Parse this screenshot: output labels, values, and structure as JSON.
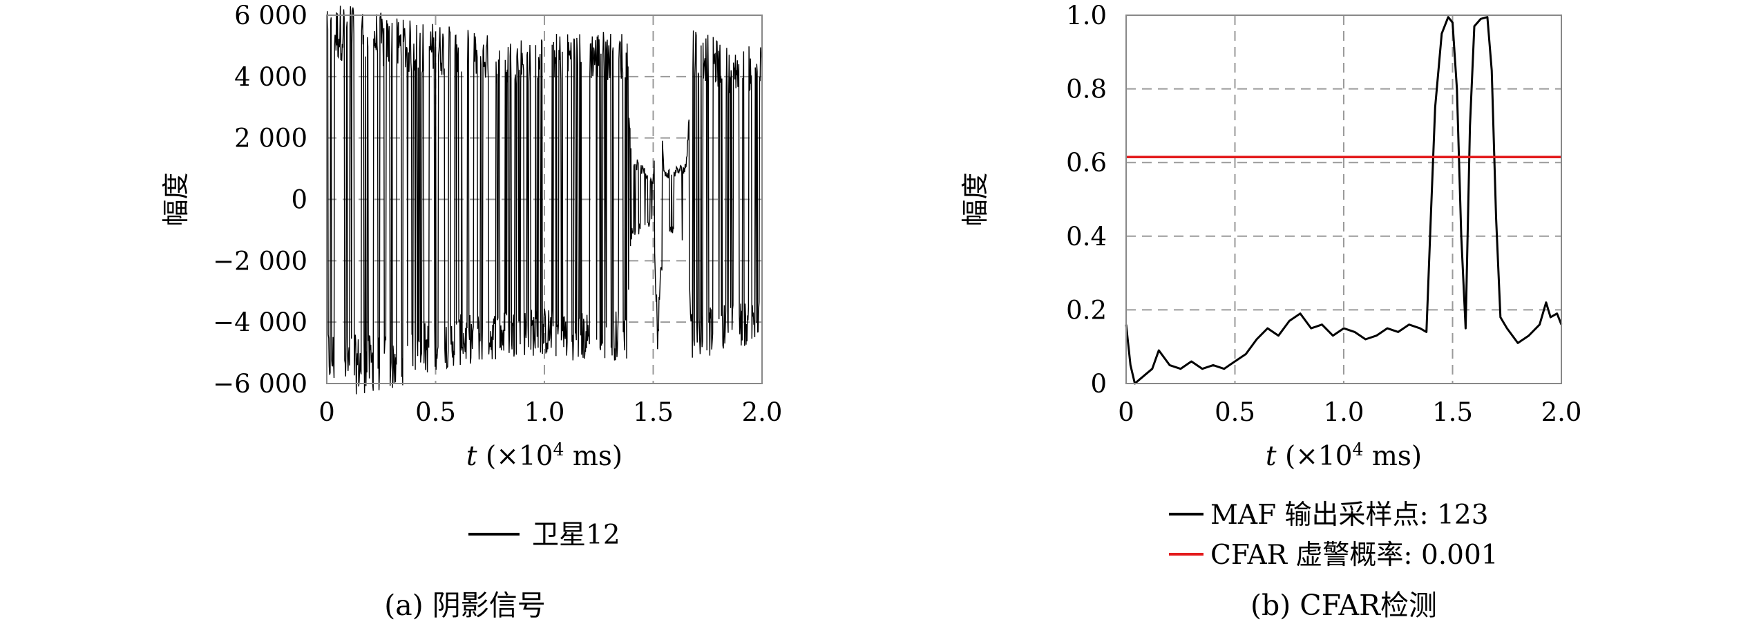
{
  "chart_data": [
    {
      "type": "line",
      "panel_label": "(a)",
      "caption": "(a) 阴影信号",
      "xlabel": "t (×10⁴ ms)",
      "xlabel_var": "t",
      "xlabel_unit": "(×10",
      "xlabel_exp": "4",
      "xlabel_tail": " ms)",
      "ylabel": "幅度",
      "xlim": [
        0,
        2.0
      ],
      "ylim": [
        -6000,
        6000
      ],
      "xticks": [
        0,
        0.5,
        1.0,
        1.5,
        2.0
      ],
      "xtick_labels": [
        "0",
        "0.5",
        "1.0",
        "1.5",
        "2.0"
      ],
      "yticks": [
        -6000,
        -4000,
        -2000,
        0,
        2000,
        4000,
        6000
      ],
      "ytick_labels": [
        "−6 000",
        "−4 000",
        "−2 000",
        "0",
        "2 000",
        "4 000",
        "6 000"
      ],
      "grid": true,
      "legend_position": "bottom",
      "series": [
        {
          "name": "卫星12",
          "color": "#000000",
          "envelope": [
            {
              "x": 0.0,
              "top": 5200,
              "bottom": -5100
            },
            {
              "x": 0.1,
              "top": 5600,
              "bottom": -5400
            },
            {
              "x": 0.3,
              "top": 5000,
              "bottom": -5300
            },
            {
              "x": 0.5,
              "top": 4900,
              "bottom": -4700
            },
            {
              "x": 0.8,
              "top": 4500,
              "bottom": -4400
            },
            {
              "x": 1.0,
              "top": 4600,
              "bottom": -4300
            },
            {
              "x": 1.2,
              "top": 4700,
              "bottom": -4500
            },
            {
              "x": 1.38,
              "top": 4700,
              "bottom": -4400
            },
            {
              "x": 1.4,
              "top": 1300,
              "bottom": -1100
            },
            {
              "x": 1.5,
              "top": 600,
              "bottom": -700
            },
            {
              "x": 1.52,
              "top": 4600,
              "bottom": -4100
            },
            {
              "x": 1.55,
              "top": 800,
              "bottom": -900
            },
            {
              "x": 1.65,
              "top": 1000,
              "bottom": -1200
            },
            {
              "x": 1.68,
              "top": 4900,
              "bottom": -4500
            },
            {
              "x": 1.85,
              "top": 4200,
              "bottom": -4100
            },
            {
              "x": 2.0,
              "top": 4300,
              "bottom": -4000
            }
          ]
        }
      ]
    },
    {
      "type": "line",
      "panel_label": "(b)",
      "caption": "(b) CFAR检测",
      "xlabel": "t (×10⁴ ms)",
      "xlabel_var": "t",
      "xlabel_unit": "(×10",
      "xlabel_exp": "4",
      "xlabel_tail": " ms)",
      "ylabel": "幅度",
      "xlim": [
        0,
        2.0
      ],
      "ylim": [
        0,
        1.0
      ],
      "xticks": [
        0,
        0.5,
        1.0,
        1.5,
        2.0
      ],
      "xtick_labels": [
        "0",
        "0.5",
        "1.0",
        "1.5",
        "2.0"
      ],
      "yticks": [
        0,
        0.2,
        0.4,
        0.6,
        0.8,
        1.0
      ],
      "ytick_labels": [
        "0",
        "0.2",
        "0.4",
        "0.6",
        "0.8",
        "1.0"
      ],
      "grid": true,
      "legend_position": "bottom",
      "series": [
        {
          "name": "MAF 输出采样点: 123",
          "color": "#000000",
          "x": [
            0,
            0.02,
            0.04,
            0.08,
            0.12,
            0.15,
            0.2,
            0.25,
            0.3,
            0.35,
            0.4,
            0.45,
            0.5,
            0.55,
            0.6,
            0.65,
            0.7,
            0.75,
            0.8,
            0.85,
            0.9,
            0.95,
            1.0,
            1.05,
            1.1,
            1.15,
            1.2,
            1.25,
            1.3,
            1.35,
            1.38,
            1.4,
            1.42,
            1.45,
            1.48,
            1.5,
            1.52,
            1.54,
            1.56,
            1.58,
            1.6,
            1.63,
            1.66,
            1.68,
            1.7,
            1.72,
            1.75,
            1.8,
            1.85,
            1.9,
            1.93,
            1.95,
            1.98,
            2.0
          ],
          "y": [
            0.16,
            0.05,
            0.0,
            0.02,
            0.04,
            0.09,
            0.05,
            0.04,
            0.06,
            0.04,
            0.05,
            0.04,
            0.06,
            0.08,
            0.12,
            0.15,
            0.13,
            0.17,
            0.19,
            0.15,
            0.16,
            0.13,
            0.15,
            0.14,
            0.12,
            0.13,
            0.15,
            0.14,
            0.16,
            0.15,
            0.14,
            0.45,
            0.75,
            0.95,
            0.995,
            0.98,
            0.8,
            0.4,
            0.15,
            0.7,
            0.97,
            0.99,
            0.995,
            0.85,
            0.45,
            0.18,
            0.15,
            0.11,
            0.13,
            0.16,
            0.22,
            0.18,
            0.19,
            0.16
          ]
        },
        {
          "name": "CFAR 虚警概率: 0.001",
          "color": "#e31a1c",
          "x": [
            0,
            2.0
          ],
          "y": [
            0.615,
            0.615
          ]
        }
      ]
    }
  ]
}
